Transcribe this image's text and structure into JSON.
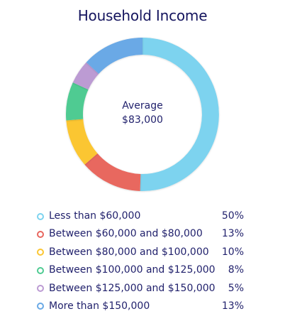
{
  "chart_data": {
    "type": "pie",
    "title": "Household Income",
    "center_label": {
      "line1": "Average",
      "line2": "$83,000"
    },
    "categories": [
      "Less than $60,000",
      "Between $60,000 and $80,000",
      "Between $80,000 and $100,000",
      "Between $100,000 and $125,000",
      "Between $125,000 and $150,000",
      "More than $150,000"
    ],
    "values": [
      50,
      13,
      10,
      8,
      5,
      13
    ],
    "value_labels": [
      "50%",
      "13%",
      "10%",
      "8%",
      "5%",
      "13%"
    ],
    "colors": [
      "#7dd3ef",
      "#e8675f",
      "#fbc633",
      "#4fcb92",
      "#bc9bd3",
      "#6aa9e6"
    ],
    "legend_position": "bottom"
  }
}
